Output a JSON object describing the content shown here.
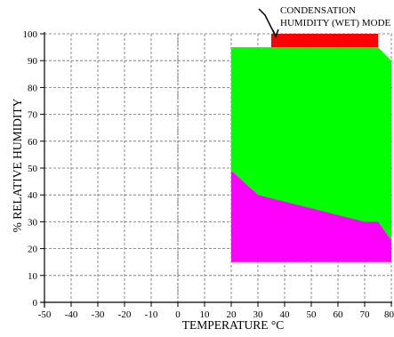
{
  "chart_data": {
    "type": "area",
    "xlabel": "TEMPERATURE °C",
    "ylabel": "% RELATIVE HUMIDITY",
    "xlim": [
      -50,
      80
    ],
    "ylim": [
      0,
      100
    ],
    "x_ticks": [
      "-50",
      "-40",
      "-30",
      "-20",
      "-10",
      "0",
      "10",
      "20",
      "30",
      "40",
      "50",
      "60",
      "70",
      "80"
    ],
    "y_ticks": [
      "0",
      "10",
      "20",
      "30",
      "40",
      "50",
      "60",
      "70",
      "80",
      "90",
      "100"
    ],
    "grid": true,
    "regions": [
      {
        "color": "#00ff00",
        "polygon": [
          [
            20,
            95
          ],
          [
            75,
            95
          ],
          [
            80,
            90
          ],
          [
            80,
            15
          ],
          [
            20,
            15
          ]
        ]
      },
      {
        "color": "#ff00ff",
        "polygon": [
          [
            20,
            49
          ],
          [
            30,
            40
          ],
          [
            50,
            35
          ],
          [
            70,
            30
          ],
          [
            75,
            30
          ],
          [
            80,
            23
          ],
          [
            80,
            15
          ],
          [
            20,
            15
          ]
        ]
      },
      {
        "color": "#ff0000",
        "polygon": [
          [
            35,
            95
          ],
          [
            75,
            95
          ],
          [
            75,
            100
          ],
          [
            35,
            100
          ]
        ]
      }
    ],
    "annotation": {
      "lines": [
        "CONDENSATION",
        "HUMIDITY (WET) MODE"
      ],
      "target": [
        35,
        100
      ]
    }
  }
}
